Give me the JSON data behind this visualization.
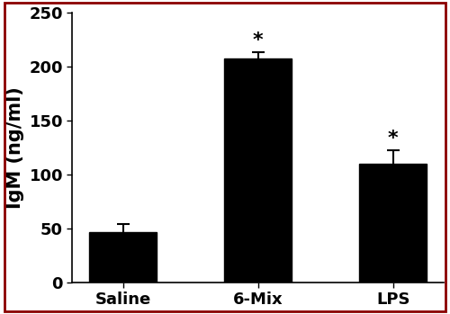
{
  "categories": [
    "Saline",
    "6-Mix",
    "LPS"
  ],
  "values": [
    46,
    207,
    110
  ],
  "errors": [
    8,
    6,
    12
  ],
  "bar_color": "#000000",
  "bar_width": 0.5,
  "ylabel": "IgM (ng/ml)",
  "ylim": [
    0,
    250
  ],
  "yticks": [
    0,
    50,
    100,
    150,
    200,
    250
  ],
  "significance": [
    false,
    true,
    true
  ],
  "sig_symbol": "*",
  "sig_fontsize": 16,
  "ylabel_fontsize": 15,
  "tick_fontsize": 13,
  "border_color": "#8B0000",
  "background_color": "#ffffff",
  "edge_color": "#000000",
  "border_linewidth": 2.0
}
